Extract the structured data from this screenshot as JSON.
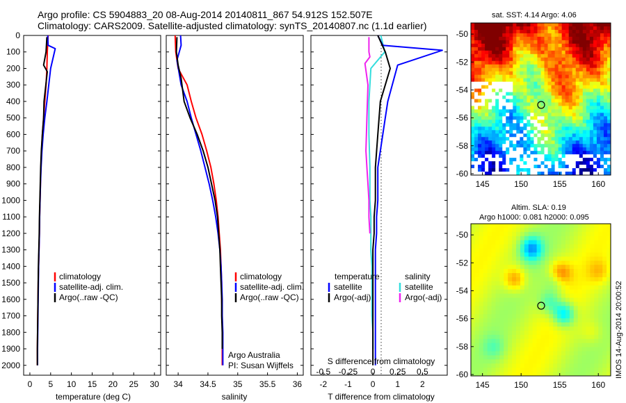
{
  "header": {
    "line1": "Argo profile: CS 5904883_20 08-Aug-2014 20140811_867 54.912S 152.507E",
    "line2": "Climatology: CARS2009. Satellite-adjusted climatology: synTS_20140807.nc (1.1d earlier)"
  },
  "colors": {
    "climatology": "#ff0000",
    "satellite": "#0000ff",
    "argo": "#000000",
    "temp_diff_satellite": "#0000ff",
    "temp_diff_argo": "#000000",
    "sal_diff_satellite": "#33dddd",
    "sal_diff_argo": "#ee22ee"
  },
  "depth_axis": {
    "ticks": [
      0,
      100,
      200,
      300,
      400,
      500,
      600,
      700,
      800,
      900,
      1000,
      1100,
      1200,
      1300,
      1400,
      1500,
      1600,
      1700,
      1800,
      1900,
      2000
    ],
    "range": [
      0,
      2060
    ]
  },
  "panels": {
    "temperature": {
      "xlabel": "temperature (deg C)",
      "xticks": [
        0,
        5,
        10,
        15,
        20,
        25,
        30
      ],
      "legend": [
        "climatology",
        "satellite-adj. clim.",
        "Argo(..raw -QC)"
      ]
    },
    "salinity": {
      "xlabel": "salinity",
      "xticks": [
        "34",
        "34.5",
        "35",
        "35.5",
        "36"
      ],
      "legend": [
        "climatology",
        "satellite-adj. clim.",
        "Argo(..raw -QC)"
      ],
      "credit1": "Argo Australia",
      "credit2": "PI: Susan Wijffels"
    },
    "difference": {
      "xlabel_bottom": "T difference from climatology",
      "xlabel_top": "S difference from climatology",
      "t_ticks": [
        "-2",
        "-1",
        "0",
        "1",
        "2"
      ],
      "s_ticks": [
        "-0.5",
        "-0.25",
        "0",
        "0.25",
        "0.5"
      ],
      "legend_temp_title": "temperature",
      "legend_sal_title": "salinity",
      "legend_temp": [
        "satellite",
        "Argo(-adj)"
      ],
      "legend_sal": [
        "satellite",
        "Argo(-adj)"
      ]
    },
    "sst_map": {
      "title": "sat. SST: 4.14 Argo: 4.06",
      "xticks": [
        "145",
        "150",
        "155",
        "160"
      ],
      "yticks": [
        "-50",
        "-52",
        "-54",
        "-56",
        "-58",
        "-60"
      ]
    },
    "sla_map": {
      "title1": "Altim. SLA: 0.19",
      "title2": "Argo h1000: 0.081 h2000: 0.095",
      "xticks": [
        "145",
        "150",
        "155",
        "160"
      ],
      "yticks": [
        "-50",
        "-52",
        "-54",
        "-56",
        "-58",
        "-60"
      ]
    }
  },
  "side_label": "IMOS 14-Aug-2014 20:00:52",
  "chart_data": [
    {
      "type": "line",
      "title": "",
      "xlabel": "temperature (deg C)",
      "ylabel": "",
      "xlim": [
        -1.5,
        31.5
      ],
      "ylim": [
        2060,
        0
      ],
      "series": [
        {
          "name": "climatology",
          "x": [
            4.4,
            4.2,
            4.1,
            3.9,
            3.6,
            3.3,
            3.0,
            2.8,
            2.65,
            2.55,
            2.45,
            2.35,
            2.3,
            2.2,
            2.1,
            2.0,
            1.95,
            1.9,
            1.85,
            1.8,
            1.8
          ],
          "depth": [
            0,
            100,
            200,
            300,
            400,
            500,
            600,
            700,
            800,
            900,
            1000,
            1100,
            1200,
            1300,
            1400,
            1500,
            1600,
            1700,
            1800,
            1900,
            2000
          ]
        },
        {
          "name": "satellite-adj. clim.",
          "x": [
            4.3,
            4.4,
            6.1,
            5.0,
            4.1,
            3.6,
            3.2,
            2.9,
            2.7,
            2.55,
            2.45,
            2.35,
            2.3,
            2.2,
            2.1,
            2.05,
            2.0,
            1.95,
            1.9,
            1.85,
            1.85
          ],
          "depth": [
            0,
            60,
            80,
            200,
            400,
            500,
            600,
            700,
            800,
            900,
            1000,
            1100,
            1200,
            1300,
            1400,
            1500,
            1600,
            1700,
            1800,
            1900,
            2000
          ]
        },
        {
          "name": "Argo(..raw -QC)",
          "x": [
            4.1,
            3.9,
            3.3,
            4.2,
            3.4,
            3.3,
            3.0,
            2.75,
            2.6,
            2.5,
            2.4,
            2.3,
            2.25,
            2.15,
            2.05,
            2.0,
            1.95,
            1.9,
            1.85,
            1.8,
            1.8
          ],
          "depth": [
            10,
            100,
            180,
            220,
            400,
            500,
            600,
            700,
            800,
            900,
            1000,
            1100,
            1200,
            1300,
            1400,
            1500,
            1600,
            1700,
            1800,
            1900,
            2000
          ]
        }
      ]
    },
    {
      "type": "line",
      "title": "",
      "xlabel": "salinity",
      "ylabel": "",
      "xlim": [
        33.8,
        36.1
      ],
      "ylim": [
        2060,
        0
      ],
      "series": [
        {
          "name": "climatology",
          "x": [
            33.95,
            33.96,
            34.0,
            34.15,
            34.22,
            34.3,
            34.4,
            34.48,
            34.55,
            34.6,
            34.64,
            34.67,
            34.69,
            34.71,
            34.72,
            34.73,
            34.73,
            34.74,
            34.74,
            34.74,
            34.74
          ],
          "depth": [
            0,
            100,
            200,
            300,
            400,
            500,
            600,
            700,
            800,
            900,
            1000,
            1100,
            1200,
            1300,
            1400,
            1500,
            1600,
            1700,
            1800,
            1900,
            2000
          ]
        },
        {
          "name": "satellite-adj. clim.",
          "x": [
            34.04,
            34.05,
            33.98,
            34.05,
            34.15,
            34.22,
            34.3,
            34.38,
            34.45,
            34.52,
            34.58,
            34.63,
            34.67,
            34.7,
            34.72,
            34.73,
            34.74,
            34.74,
            34.75,
            34.75,
            34.75
          ],
          "depth": [
            0,
            60,
            150,
            300,
            400,
            500,
            600,
            700,
            800,
            900,
            1000,
            1100,
            1200,
            1300,
            1400,
            1500,
            1600,
            1700,
            1800,
            1900,
            2000
          ]
        },
        {
          "name": "Argo(..raw -QC)",
          "x": [
            33.98,
            33.97,
            34.0,
            34.05,
            34.1,
            34.2,
            34.32,
            34.42,
            34.5,
            34.56,
            34.62,
            34.66,
            34.68,
            34.7,
            34.71,
            34.72,
            34.73,
            34.73,
            34.74,
            34.74
          ],
          "depth": [
            10,
            100,
            180,
            260,
            400,
            500,
            600,
            700,
            800,
            900,
            1000,
            1100,
            1200,
            1300,
            1400,
            1500,
            1600,
            1700,
            1800,
            1900
          ]
        }
      ]
    },
    {
      "type": "line",
      "title": "",
      "xlabel": "T difference from climatology",
      "ylabel": "",
      "xlim": [
        -2.5,
        3.0
      ],
      "ylim": [
        2060,
        0
      ],
      "series": [
        {
          "name": "satellite",
          "x": [
            0.2,
            0.4,
            2.8,
            1.0,
            0.6,
            0.5,
            0.3,
            0.2,
            0.2,
            0.2,
            0.15,
            0.15,
            0.1,
            0.1,
            0.1,
            0.1,
            0.1,
            0.1,
            0.1,
            0.1
          ],
          "depth": [
            0,
            60,
            90,
            180,
            400,
            500,
            700,
            800,
            900,
            1000,
            1100,
            1200,
            1300,
            1400,
            1500,
            1600,
            1700,
            1800,
            1900,
            2000
          ]
        },
        {
          "name": "Argo(-adj)",
          "x": [
            0.2,
            0.5,
            0.7,
            0.3,
            0.2,
            0.1,
            0.1,
            0.05,
            0.05,
            0.0,
            0.0,
            0.0,
            0.0,
            0.0,
            0.0,
            0.0,
            0.0
          ],
          "depth": [
            0,
            100,
            200,
            400,
            600,
            800,
            1000,
            1100,
            1200,
            1300,
            1400,
            1500,
            1600,
            1700,
            1800,
            1900,
            2000
          ]
        }
      ]
    },
    {
      "type": "line",
      "title": "",
      "xlabel": "S difference from climatology",
      "ylabel": "",
      "xlim": [
        -0.625,
        0.75
      ],
      "ylim": [
        2060,
        0
      ],
      "series": [
        {
          "name": "satellite",
          "x": [
            0.08,
            0.12,
            -0.02,
            -0.03,
            -0.04,
            -0.04,
            -0.03,
            -0.03,
            -0.02,
            -0.02,
            -0.02,
            -0.01,
            -0.01,
            -0.01,
            -0.01,
            0.0,
            0.0
          ],
          "depth": [
            0,
            100,
            200,
            300,
            400,
            600,
            800,
            1000,
            1100,
            1200,
            1300,
            1400,
            1500,
            1600,
            1700,
            1800,
            1900
          ]
        },
        {
          "name": "Argo(-adj)",
          "x": [
            -0.04,
            -0.04,
            -0.03,
            -0.08,
            -0.05,
            -0.06,
            -0.07,
            -0.06,
            -0.05,
            -0.04,
            -0.04,
            -0.03
          ],
          "depth": [
            10,
            100,
            130,
            170,
            300,
            500,
            700,
            800,
            900,
            1000,
            1100,
            1200
          ]
        }
      ]
    }
  ]
}
